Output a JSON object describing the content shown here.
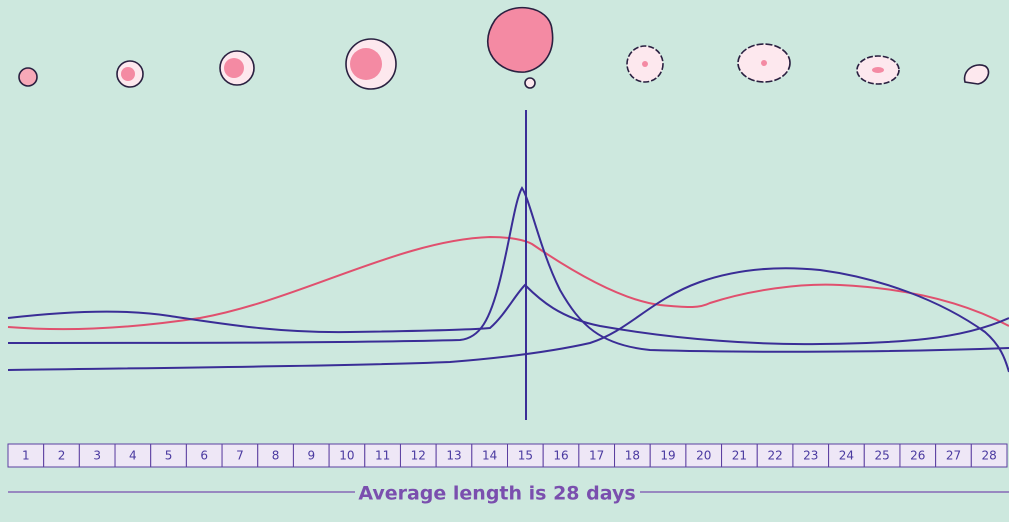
{
  "days": [
    1,
    2,
    3,
    4,
    5,
    6,
    7,
    8,
    9,
    10,
    11,
    12,
    13,
    14,
    15,
    16,
    17,
    18,
    19,
    20,
    21,
    22,
    23,
    24,
    25,
    26,
    27,
    28
  ],
  "caption": "Average length is 28 days"
}
